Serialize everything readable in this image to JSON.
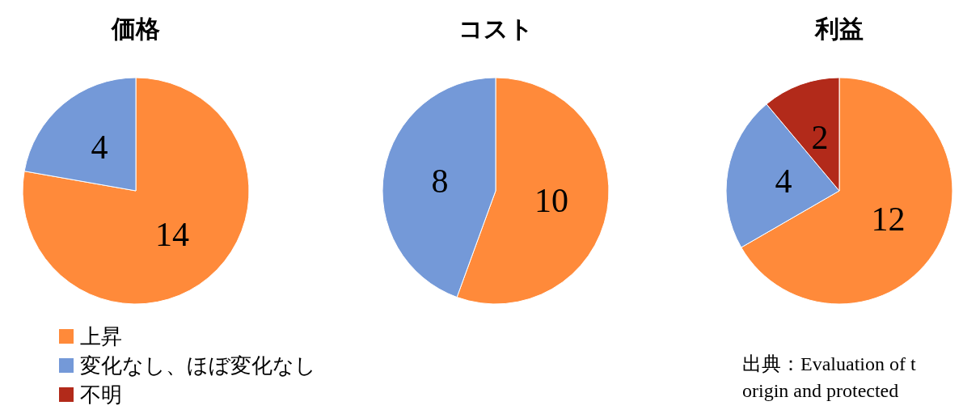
{
  "chart_data": [
    {
      "type": "pie",
      "title": "価格",
      "categories": [
        "上昇",
        "変化なし、ほぼ変化なし",
        "不明"
      ],
      "values": [
        14,
        4,
        null
      ],
      "colors": [
        "#ff8a3a",
        "#7499d8",
        "#b22a1a"
      ],
      "data_labels": true,
      "legend": "bottom"
    },
    {
      "type": "pie",
      "title": "コスト",
      "categories": [
        null,
        null
      ],
      "values": [
        10,
        8
      ],
      "colors": [
        "#ff8a3a",
        "#7499d8"
      ],
      "data_labels": true
    },
    {
      "type": "pie",
      "title": "利益",
      "categories": [
        null,
        null,
        null
      ],
      "values": [
        12,
        4,
        2
      ],
      "colors": [
        "#ff8a3a",
        "#7499d8",
        "#b22a1a"
      ],
      "data_labels": true,
      "annotations": [
        "出典：Evaluation of t",
        "origin and protected"
      ]
    }
  ]
}
